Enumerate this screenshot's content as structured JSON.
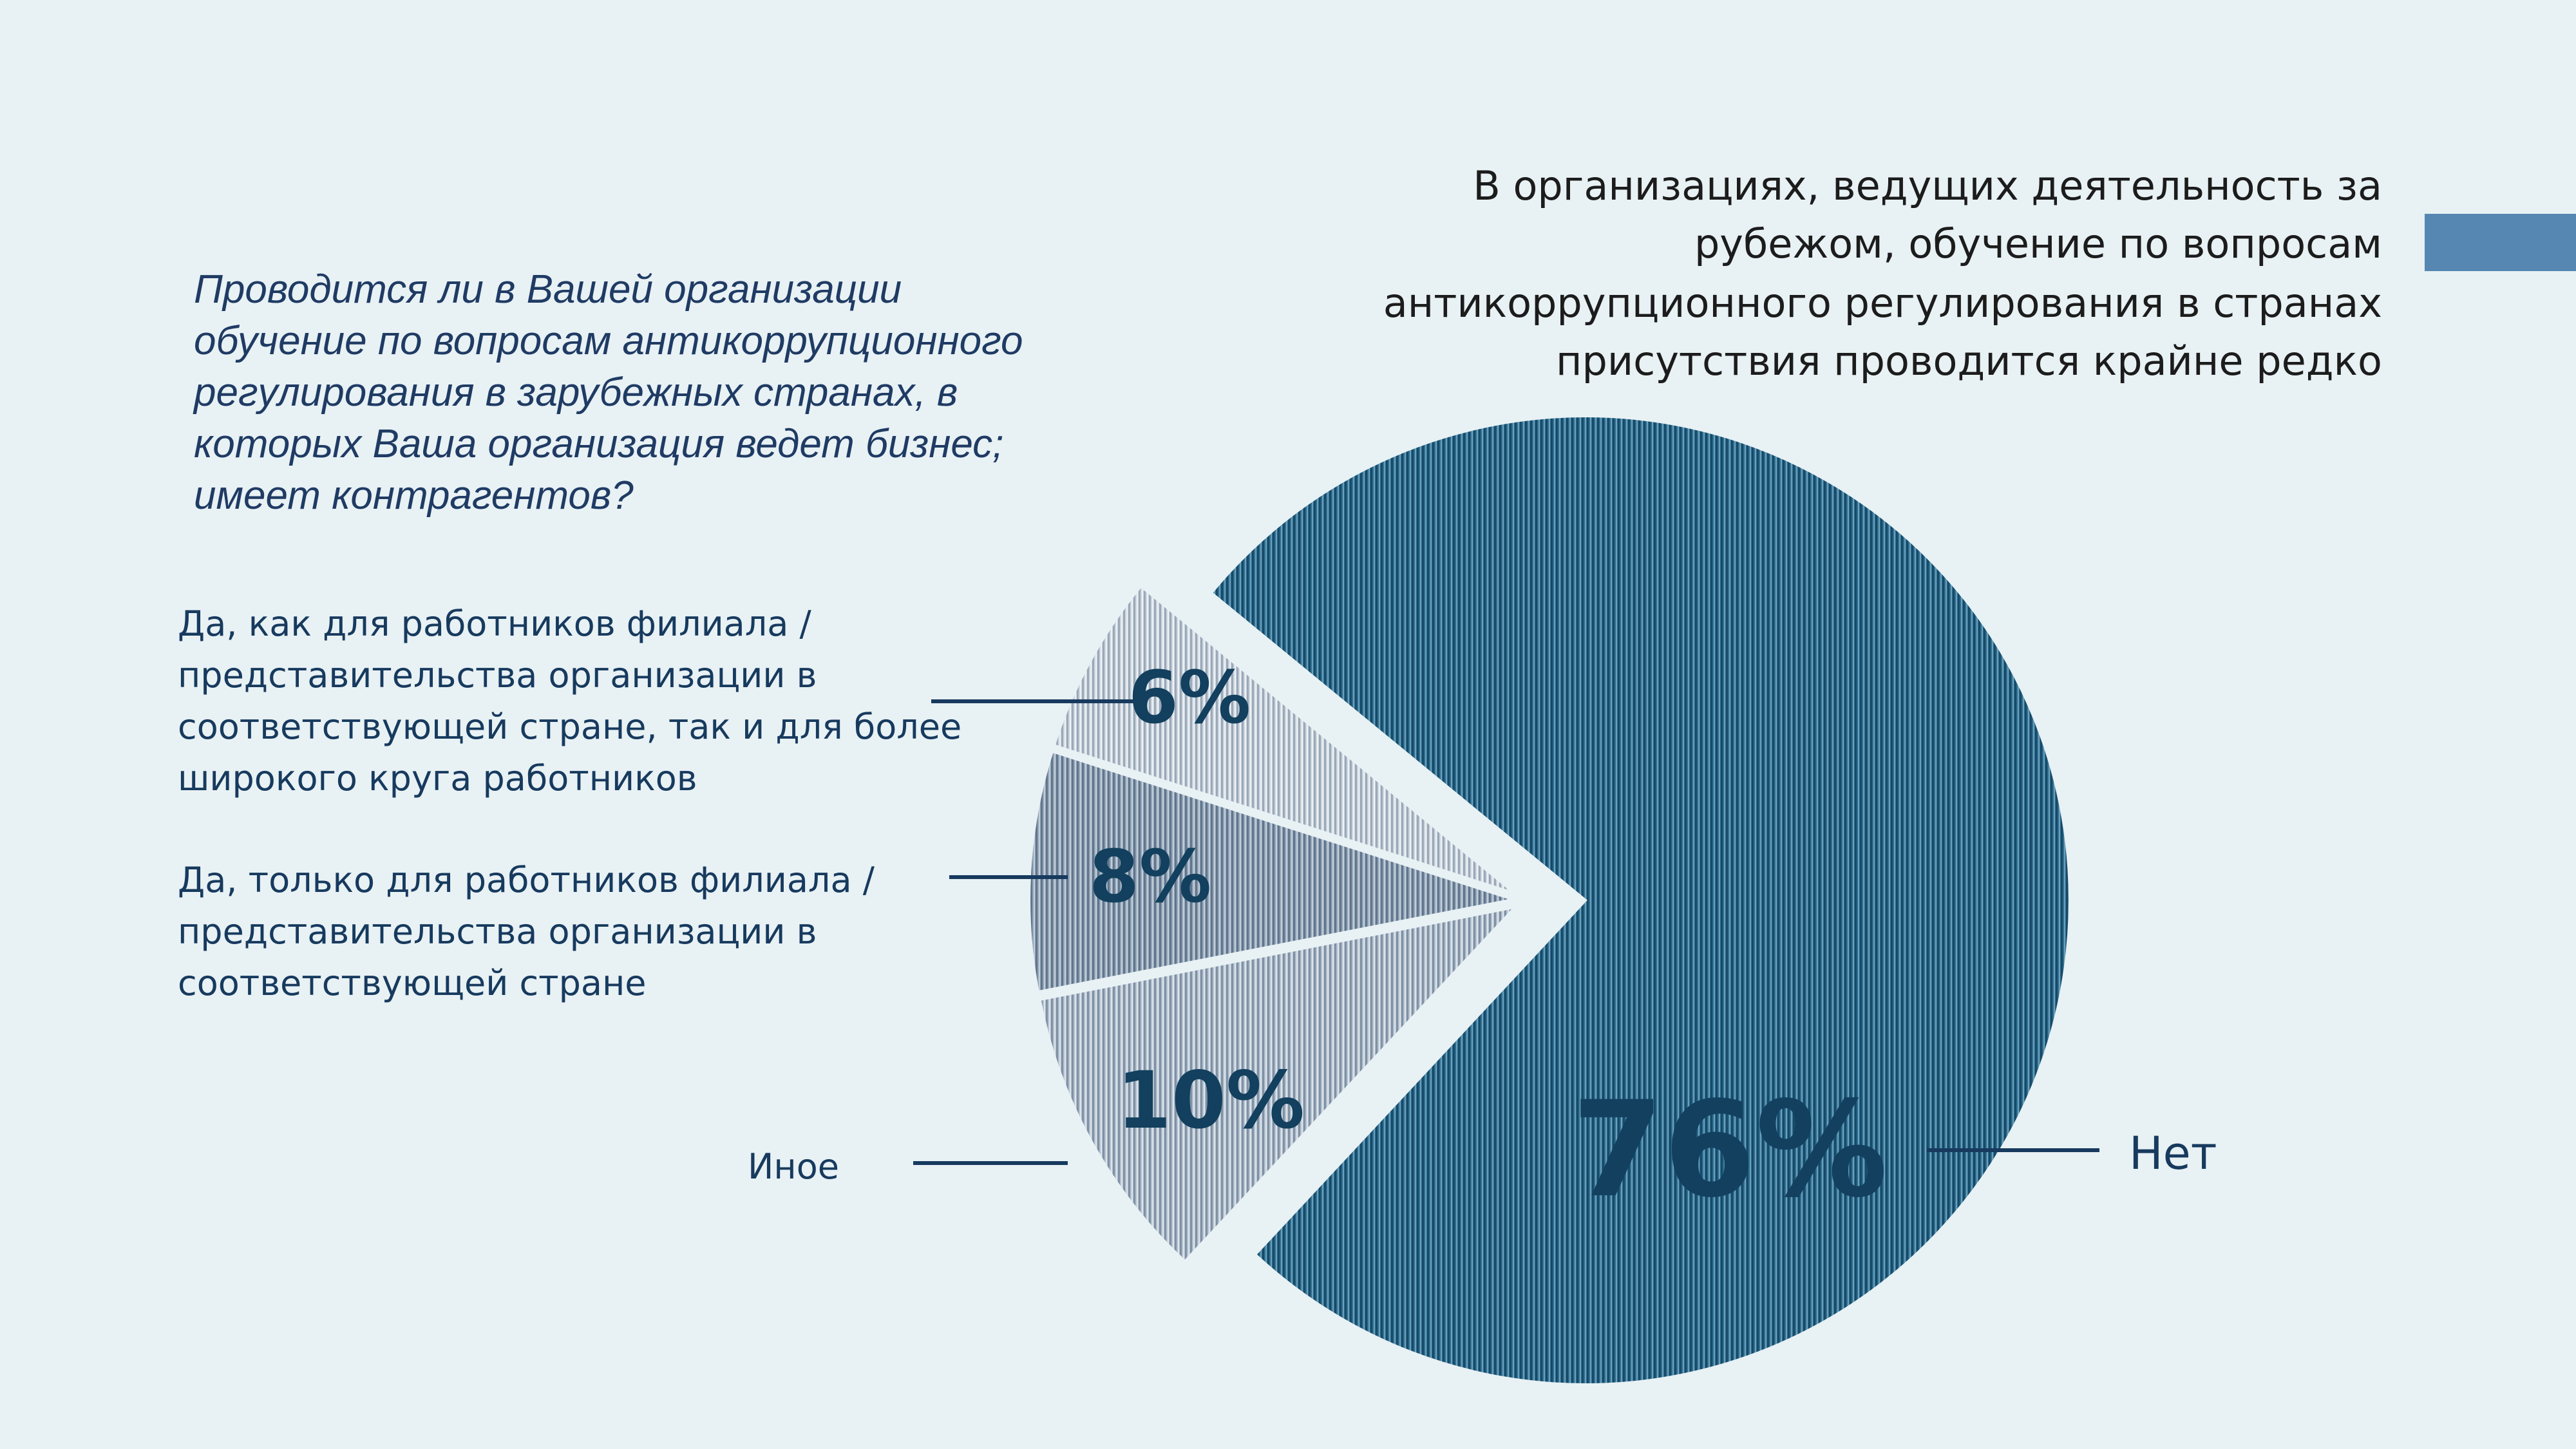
{
  "heading": {
    "lines": [
      "В организациях, ведущих деятельность за",
      "рубежом, обучение по вопросам",
      "антикоррупционного регулирования в странах",
      "присутствия проводится крайне редко"
    ]
  },
  "question": {
    "lines": [
      "Проводится ли в Вашей организации",
      "обучение по вопросам антикоррупционного",
      "регулирования в зарубежных странах, в",
      "которых Ваша организация ведет бизнес;",
      "имеет контрагентов?"
    ]
  },
  "colors": {
    "accent_bar": "#5587b2",
    "label": "#12405e"
  },
  "chart_data": {
    "type": "pie",
    "title": "Проводится ли в Вашей организации обучение по вопросам антикоррупционного регулирования в зарубежных странах",
    "slices": [
      {
        "name": "Нет",
        "value": 76,
        "label": "76%",
        "legend_lines": [
          "Нет"
        ],
        "color": "#2f6d8e"
      },
      {
        "name": "Иное",
        "value": 10,
        "label": "10%",
        "legend_lines": [
          "Иное"
        ],
        "color": "#aebccb"
      },
      {
        "name": "Да, только для работников филиала",
        "value": 8,
        "label": "8%",
        "legend_lines": [
          "Да, только для работников филиала /",
          "представительства организации в",
          "соответствующей стране"
        ],
        "color": "#8c9db0"
      },
      {
        "name": "Да, как для работников филиала, так и для более широкого круга",
        "value": 6,
        "label": "6%",
        "legend_lines": [
          "Да, как для работников филиала /",
          "представительства организации в",
          "соответствующей стране, так и для более",
          "широкого круга работников"
        ],
        "color": "#c9d1da"
      }
    ]
  }
}
